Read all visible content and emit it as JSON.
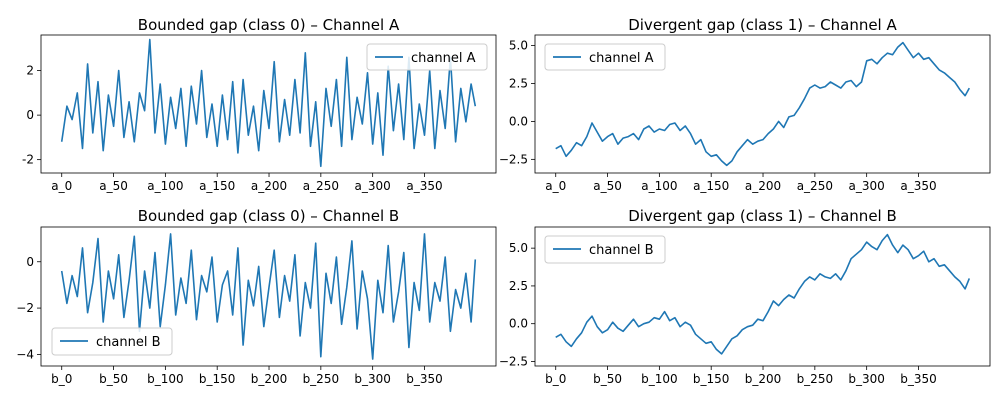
{
  "figure": {
    "line_color": "#1f77b4"
  },
  "chart_data": [
    {
      "type": "line",
      "title": "Bounded gap (class 0) – Channel A",
      "xlabel": "",
      "ylabel": "",
      "x_tick_labels": [
        "a_0",
        "a_50",
        "a_100",
        "a_150",
        "a_200",
        "a_250",
        "a_300",
        "a_350"
      ],
      "x_tick_positions": [
        0,
        50,
        100,
        150,
        200,
        250,
        300,
        350
      ],
      "xlim": [
        -20,
        419
      ],
      "ylim": [
        -2.6,
        3.6
      ],
      "y_ticks": [
        -2,
        0,
        2
      ],
      "legend": "upper-right",
      "grid": false,
      "series": [
        {
          "name": "channel A",
          "x": [
            0,
            5,
            10,
            15,
            20,
            25,
            30,
            35,
            40,
            45,
            50,
            55,
            60,
            65,
            70,
            75,
            80,
            85,
            90,
            95,
            100,
            105,
            110,
            115,
            120,
            125,
            130,
            135,
            140,
            145,
            150,
            155,
            160,
            165,
            170,
            175,
            180,
            185,
            190,
            195,
            200,
            205,
            210,
            215,
            220,
            225,
            230,
            235,
            240,
            245,
            250,
            255,
            260,
            265,
            270,
            275,
            280,
            285,
            290,
            295,
            300,
            305,
            310,
            315,
            320,
            325,
            330,
            335,
            340,
            345,
            350,
            355,
            360,
            365,
            370,
            375,
            380,
            385,
            390,
            395,
            399
          ],
          "y": [
            -1.2,
            0.4,
            -0.2,
            1.0,
            -1.5,
            2.3,
            -0.8,
            1.5,
            -1.6,
            0.9,
            -0.5,
            2.0,
            -1.0,
            0.6,
            -1.2,
            1.0,
            0.2,
            3.4,
            -0.8,
            1.4,
            -1.3,
            0.8,
            -0.6,
            1.2,
            -1.4,
            1.3,
            -0.4,
            2.0,
            -1.0,
            0.5,
            -1.4,
            0.9,
            -1.1,
            1.5,
            -1.7,
            1.6,
            -0.9,
            0.4,
            -1.6,
            1.1,
            -0.6,
            2.4,
            -1.2,
            0.7,
            -0.9,
            1.6,
            -0.8,
            2.8,
            -1.4,
            0.6,
            -2.3,
            1.2,
            -0.5,
            1.6,
            -1.4,
            2.6,
            -1.1,
            0.8,
            -0.4,
            1.9,
            -1.3,
            1.0,
            -1.8,
            2.2,
            -0.7,
            1.4,
            -1.1,
            2.6,
            -1.5,
            0.5,
            -0.9,
            2.0,
            -1.5,
            1.1,
            -0.6,
            2.6,
            -1.2,
            1.2,
            -0.3,
            1.4,
            0.4
          ]
        }
      ]
    },
    {
      "type": "line",
      "title": "Divergent gap (class 1) – Channel A",
      "xlabel": "",
      "ylabel": "",
      "x_tick_labels": [
        "a_0",
        "a_50",
        "a_100",
        "a_150",
        "a_200",
        "a_250",
        "a_300",
        "a_350"
      ],
      "x_tick_positions": [
        0,
        50,
        100,
        150,
        200,
        250,
        300,
        350
      ],
      "xlim": [
        -20,
        419
      ],
      "ylim": [
        -3.4,
        5.7
      ],
      "y_ticks": [
        -2.5,
        0.0,
        2.5,
        5.0
      ],
      "y_tick_labels": [
        "−2.5",
        "0.0",
        "2.5",
        "5.0"
      ],
      "legend": "upper-left",
      "grid": false,
      "series": [
        {
          "name": "channel A",
          "x": [
            0,
            5,
            10,
            15,
            20,
            25,
            30,
            35,
            40,
            45,
            50,
            55,
            60,
            65,
            70,
            75,
            80,
            85,
            90,
            95,
            100,
            105,
            110,
            115,
            120,
            125,
            130,
            135,
            140,
            145,
            150,
            155,
            160,
            165,
            170,
            175,
            180,
            185,
            190,
            195,
            200,
            205,
            210,
            215,
            220,
            225,
            230,
            235,
            240,
            245,
            250,
            255,
            260,
            265,
            270,
            275,
            280,
            285,
            290,
            295,
            300,
            305,
            310,
            315,
            320,
            325,
            330,
            335,
            340,
            345,
            350,
            355,
            360,
            365,
            370,
            375,
            380,
            385,
            390,
            395,
            399
          ],
          "y": [
            -1.8,
            -1.6,
            -2.3,
            -1.9,
            -1.4,
            -1.6,
            -1.0,
            -0.1,
            -0.7,
            -1.3,
            -1.0,
            -0.8,
            -1.5,
            -1.1,
            -1.0,
            -0.8,
            -1.2,
            -0.5,
            -0.3,
            -0.7,
            -0.5,
            -0.6,
            -0.2,
            -0.1,
            -0.6,
            -0.3,
            -0.8,
            -1.5,
            -1.2,
            -2.0,
            -2.3,
            -2.2,
            -2.6,
            -2.9,
            -2.6,
            -2.0,
            -1.6,
            -1.2,
            -1.5,
            -1.3,
            -1.2,
            -0.8,
            -0.5,
            0.0,
            -0.4,
            0.3,
            0.4,
            0.9,
            1.5,
            2.2,
            2.4,
            2.2,
            2.3,
            2.6,
            2.4,
            2.2,
            2.6,
            2.7,
            2.3,
            2.6,
            4.0,
            4.1,
            3.8,
            4.2,
            4.5,
            4.4,
            4.9,
            5.2,
            4.7,
            4.2,
            4.5,
            4.1,
            4.2,
            3.8,
            3.4,
            3.2,
            2.9,
            2.6,
            2.1,
            1.7,
            2.2
          ]
        }
      ]
    },
    {
      "type": "line",
      "title": "Bounded gap (class 0) – Channel B",
      "xlabel": "",
      "ylabel": "",
      "x_tick_labels": [
        "b_0",
        "b_50",
        "b_100",
        "b_150",
        "b_200",
        "b_250",
        "b_300",
        "b_350"
      ],
      "x_tick_positions": [
        0,
        50,
        100,
        150,
        200,
        250,
        300,
        350
      ],
      "xlim": [
        -20,
        419
      ],
      "ylim": [
        -4.5,
        1.5
      ],
      "y_ticks": [
        -4,
        -2,
        0
      ],
      "y_tick_labels": [
        "−4",
        "−2",
        "0"
      ],
      "legend": "lower-left",
      "grid": false,
      "series": [
        {
          "name": "channel B",
          "x": [
            0,
            5,
            10,
            15,
            20,
            25,
            30,
            35,
            40,
            45,
            50,
            55,
            60,
            65,
            70,
            75,
            80,
            85,
            90,
            95,
            100,
            105,
            110,
            115,
            120,
            125,
            130,
            135,
            140,
            145,
            150,
            155,
            160,
            165,
            170,
            175,
            180,
            185,
            190,
            195,
            200,
            205,
            210,
            215,
            220,
            225,
            230,
            235,
            240,
            245,
            250,
            255,
            260,
            265,
            270,
            275,
            280,
            285,
            290,
            295,
            300,
            305,
            310,
            315,
            320,
            325,
            330,
            335,
            340,
            345,
            350,
            355,
            360,
            365,
            370,
            375,
            380,
            385,
            390,
            395,
            399
          ],
          "y": [
            -0.4,
            -1.8,
            -0.6,
            -1.5,
            0.6,
            -2.2,
            -0.9,
            1.0,
            -2.6,
            -0.4,
            -1.6,
            0.3,
            -2.4,
            -0.8,
            1.1,
            -3.0,
            -0.4,
            -2.0,
            0.4,
            -2.8,
            -1.0,
            1.2,
            -2.3,
            -0.7,
            -1.8,
            0.5,
            -2.5,
            -0.6,
            -1.3,
            0.2,
            -2.6,
            -1.0,
            -0.4,
            -2.3,
            0.6,
            -3.6,
            -0.8,
            -1.9,
            -0.2,
            -2.8,
            -1.1,
            0.5,
            -2.4,
            -0.6,
            -1.7,
            0.3,
            -3.2,
            -0.9,
            -2.0,
            0.8,
            -4.1,
            -0.5,
            -1.8,
            0.2,
            -2.7,
            -1.1,
            0.9,
            -2.9,
            -0.4,
            -1.6,
            -4.2,
            -0.8,
            -2.2,
            0.7,
            -2.6,
            -1.3,
            0.4,
            -3.7,
            -0.9,
            -2.1,
            1.2,
            -2.6,
            -0.9,
            -1.7,
            0.2,
            -3.0,
            -1.2,
            -2.0,
            -0.5,
            -2.6,
            0.1
          ]
        }
      ]
    },
    {
      "type": "line",
      "title": "Divergent gap (class 1) – Channel B",
      "xlabel": "",
      "ylabel": "",
      "x_tick_labels": [
        "b_0",
        "b_50",
        "b_100",
        "b_150",
        "b_200",
        "b_250",
        "b_300",
        "b_350"
      ],
      "x_tick_positions": [
        0,
        50,
        100,
        150,
        200,
        250,
        300,
        350
      ],
      "xlim": [
        -20,
        419
      ],
      "ylim": [
        -2.8,
        6.4
      ],
      "y_ticks": [
        -2.5,
        0.0,
        2.5,
        5.0
      ],
      "y_tick_labels": [
        "−2.5",
        "0.0",
        "2.5",
        "5.0"
      ],
      "legend": "upper-left",
      "grid": false,
      "series": [
        {
          "name": "channel B",
          "x": [
            0,
            5,
            10,
            15,
            20,
            25,
            30,
            35,
            40,
            45,
            50,
            55,
            60,
            65,
            70,
            75,
            80,
            85,
            90,
            95,
            100,
            105,
            110,
            115,
            120,
            125,
            130,
            135,
            140,
            145,
            150,
            155,
            160,
            165,
            170,
            175,
            180,
            185,
            190,
            195,
            200,
            205,
            210,
            215,
            220,
            225,
            230,
            235,
            240,
            245,
            250,
            255,
            260,
            265,
            270,
            275,
            280,
            285,
            290,
            295,
            300,
            305,
            310,
            315,
            320,
            325,
            330,
            335,
            340,
            345,
            350,
            355,
            360,
            365,
            370,
            375,
            380,
            385,
            390,
            395,
            399
          ],
          "y": [
            -0.9,
            -0.7,
            -1.2,
            -1.5,
            -1.0,
            -0.6,
            0.1,
            0.5,
            -0.2,
            -0.6,
            -0.4,
            0.1,
            -0.3,
            -0.5,
            -0.1,
            0.3,
            -0.2,
            0.0,
            0.1,
            0.4,
            0.3,
            0.8,
            0.2,
            0.4,
            -0.2,
            0.1,
            -0.1,
            -0.7,
            -1.0,
            -1.3,
            -1.2,
            -1.7,
            -2.0,
            -1.5,
            -1.0,
            -0.8,
            -0.4,
            -0.2,
            -0.1,
            0.3,
            0.2,
            0.8,
            1.5,
            1.2,
            1.6,
            1.9,
            1.7,
            2.3,
            2.8,
            3.1,
            2.9,
            3.3,
            3.1,
            3.0,
            3.3,
            2.9,
            3.5,
            4.3,
            4.6,
            4.9,
            5.4,
            5.1,
            4.9,
            5.5,
            5.9,
            5.2,
            4.7,
            5.2,
            4.9,
            4.3,
            4.5,
            4.8,
            4.1,
            4.3,
            3.8,
            3.9,
            3.5,
            3.1,
            2.8,
            2.3,
            3.0
          ]
        }
      ]
    }
  ]
}
